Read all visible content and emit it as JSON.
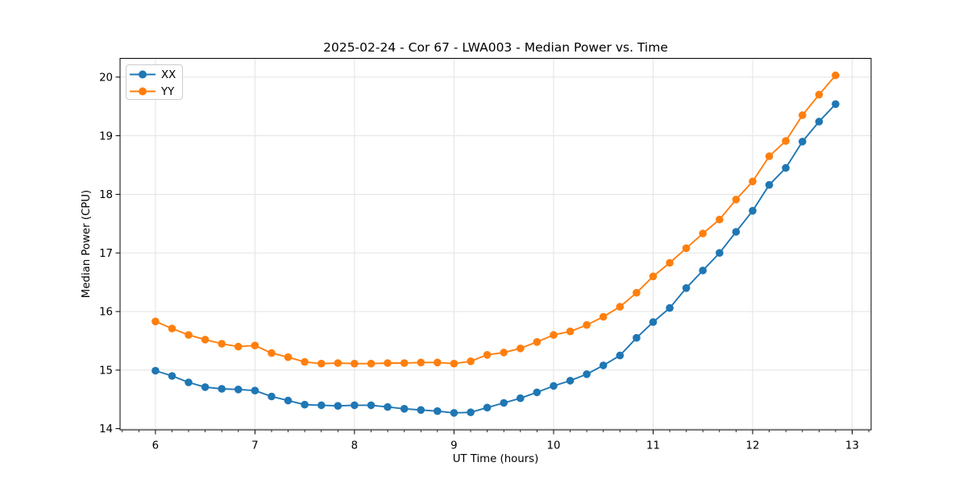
{
  "chart_data": {
    "type": "line",
    "title": "2025-02-24 - Cor 67 - LWA003 - Median Power vs. Time",
    "xlabel": "UT Time (hours)",
    "ylabel": "Median Power (CPU)",
    "xlim": [
      5.645,
      13.19
    ],
    "ylim": [
      13.98,
      20.32
    ],
    "xticks": [
      6,
      7,
      8,
      9,
      10,
      11,
      12,
      13
    ],
    "yticks": [
      14,
      15,
      16,
      17,
      18,
      19,
      20
    ],
    "x_minor_tick_step": 0.1667,
    "grid": true,
    "legend_position": "upper-left",
    "x": [
      6.0,
      6.167,
      6.333,
      6.5,
      6.667,
      6.833,
      7.0,
      7.167,
      7.333,
      7.5,
      7.667,
      7.833,
      8.0,
      8.167,
      8.333,
      8.5,
      8.667,
      8.833,
      9.0,
      9.167,
      9.333,
      9.5,
      9.667,
      9.833,
      10.0,
      10.167,
      10.333,
      10.5,
      10.667,
      10.833,
      11.0,
      11.167,
      11.333,
      11.5,
      11.667,
      11.833,
      12.0,
      12.167,
      12.333,
      12.5,
      12.667,
      12.833
    ],
    "series": [
      {
        "name": "XX",
        "color": "#1f77b4",
        "values": [
          14.99,
          14.9,
          14.79,
          14.71,
          14.68,
          14.67,
          14.65,
          14.55,
          14.48,
          14.41,
          14.4,
          14.39,
          14.4,
          14.4,
          14.37,
          14.34,
          14.32,
          14.3,
          14.27,
          14.28,
          14.36,
          14.44,
          14.52,
          14.62,
          14.73,
          14.82,
          14.93,
          15.08,
          15.25,
          15.55,
          15.82,
          16.06,
          16.4,
          16.7,
          17.0,
          17.36,
          17.72,
          18.16,
          18.45,
          18.9,
          19.24,
          19.54
        ]
      },
      {
        "name": "YY",
        "color": "#ff7f0e",
        "values": [
          15.83,
          15.71,
          15.6,
          15.52,
          15.45,
          15.4,
          15.42,
          15.29,
          15.22,
          15.14,
          15.11,
          15.12,
          15.11,
          15.11,
          15.12,
          15.12,
          15.13,
          15.13,
          15.11,
          15.15,
          15.26,
          15.3,
          15.37,
          15.48,
          15.6,
          15.66,
          15.77,
          15.91,
          16.08,
          16.32,
          16.6,
          16.83,
          17.08,
          17.33,
          17.57,
          17.91,
          18.22,
          18.65,
          18.91,
          19.35,
          19.7,
          20.03
        ]
      }
    ]
  },
  "colors": {
    "grid": "#e3e3e3",
    "spine": "#000000",
    "legend_border": "#cccccc",
    "background": "#ffffff"
  }
}
